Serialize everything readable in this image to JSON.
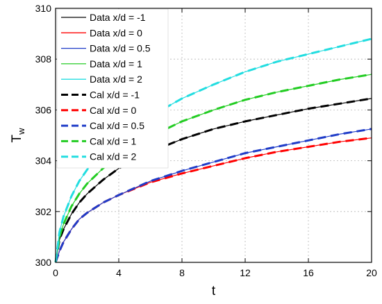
{
  "chart_data": {
    "type": "line",
    "xlabel": "t",
    "ylabel_main": "T",
    "ylabel_sub": "w",
    "xlim": [
      0,
      20
    ],
    "ylim": [
      300,
      310
    ],
    "x_ticks": [
      0,
      4,
      8,
      12,
      16,
      20
    ],
    "y_ticks": [
      300,
      302,
      304,
      306,
      308,
      310
    ],
    "x_tick_labels": [
      "0",
      "4",
      "8",
      "12",
      "16",
      "20"
    ],
    "y_tick_labels": [
      "300",
      "302",
      "304",
      "306",
      "308",
      "310"
    ],
    "grid": true,
    "legend_position": "top-left",
    "x": [
      0,
      0.25,
      0.5,
      1,
      1.5,
      2,
      3,
      4,
      6,
      8,
      10,
      12,
      14,
      16,
      18,
      20
    ],
    "series": [
      {
        "name": "Data x/d = -1",
        "style": "solid",
        "color": "#000000",
        "values": [
          300.0,
          300.9,
          301.3,
          301.9,
          302.35,
          302.7,
          303.25,
          303.7,
          304.35,
          304.85,
          305.25,
          305.55,
          305.8,
          306.05,
          306.25,
          306.45
        ]
      },
      {
        "name": "Data x/d = 0",
        "style": "solid",
        "color": "#ff0000",
        "values": [
          300.0,
          300.45,
          300.8,
          301.3,
          301.7,
          301.95,
          302.35,
          302.65,
          303.15,
          303.5,
          303.8,
          304.1,
          304.35,
          304.55,
          304.75,
          304.9
        ]
      },
      {
        "name": "Data x/d = 0.5",
        "style": "solid",
        "color": "#1f3cc8",
        "values": [
          300.0,
          300.45,
          300.8,
          301.3,
          301.7,
          301.95,
          302.35,
          302.65,
          303.2,
          303.6,
          303.95,
          304.3,
          304.55,
          304.8,
          305.05,
          305.25
        ]
      },
      {
        "name": "Data x/d = 1",
        "style": "solid",
        "color": "#22cc22",
        "values": [
          300.0,
          301.0,
          301.5,
          302.2,
          302.7,
          303.1,
          303.7,
          304.2,
          304.95,
          305.55,
          306.0,
          306.4,
          306.7,
          306.95,
          307.2,
          307.4
        ]
      },
      {
        "name": "Data x/d = 2",
        "style": "solid",
        "color": "#22dde0",
        "values": [
          300.0,
          301.2,
          301.8,
          302.6,
          303.2,
          303.65,
          304.35,
          304.9,
          305.75,
          306.45,
          307.0,
          307.5,
          307.9,
          308.2,
          308.5,
          308.8
        ]
      },
      {
        "name": "Cal x/d = -1",
        "style": "dashed",
        "color": "#000000",
        "values": [
          300.0,
          300.9,
          301.3,
          301.9,
          302.35,
          302.7,
          303.25,
          303.7,
          304.35,
          304.85,
          305.25,
          305.55,
          305.8,
          306.05,
          306.25,
          306.45
        ]
      },
      {
        "name": "Cal x/d = 0",
        "style": "dashed",
        "color": "#ff0000",
        "values": [
          300.0,
          300.45,
          300.8,
          301.3,
          301.7,
          301.95,
          302.35,
          302.65,
          303.15,
          303.5,
          303.8,
          304.1,
          304.35,
          304.55,
          304.75,
          304.9
        ]
      },
      {
        "name": "Cal x/d = 0.5",
        "style": "dashed",
        "color": "#1f3cc8",
        "values": [
          300.0,
          300.45,
          300.8,
          301.3,
          301.7,
          301.95,
          302.35,
          302.65,
          303.2,
          303.6,
          303.95,
          304.3,
          304.55,
          304.8,
          305.05,
          305.25
        ]
      },
      {
        "name": "Cal x/d = 1",
        "style": "dashed",
        "color": "#22cc22",
        "values": [
          300.0,
          301.0,
          301.5,
          302.2,
          302.7,
          303.1,
          303.7,
          304.2,
          304.95,
          305.55,
          306.0,
          306.4,
          306.7,
          306.95,
          307.2,
          307.4
        ]
      },
      {
        "name": "Cal x/d = 2",
        "style": "dashed",
        "color": "#22dde0",
        "values": [
          300.0,
          301.2,
          301.8,
          302.6,
          303.2,
          303.65,
          304.35,
          304.9,
          305.75,
          306.45,
          307.0,
          307.5,
          307.9,
          308.2,
          308.5,
          308.8
        ]
      }
    ]
  }
}
